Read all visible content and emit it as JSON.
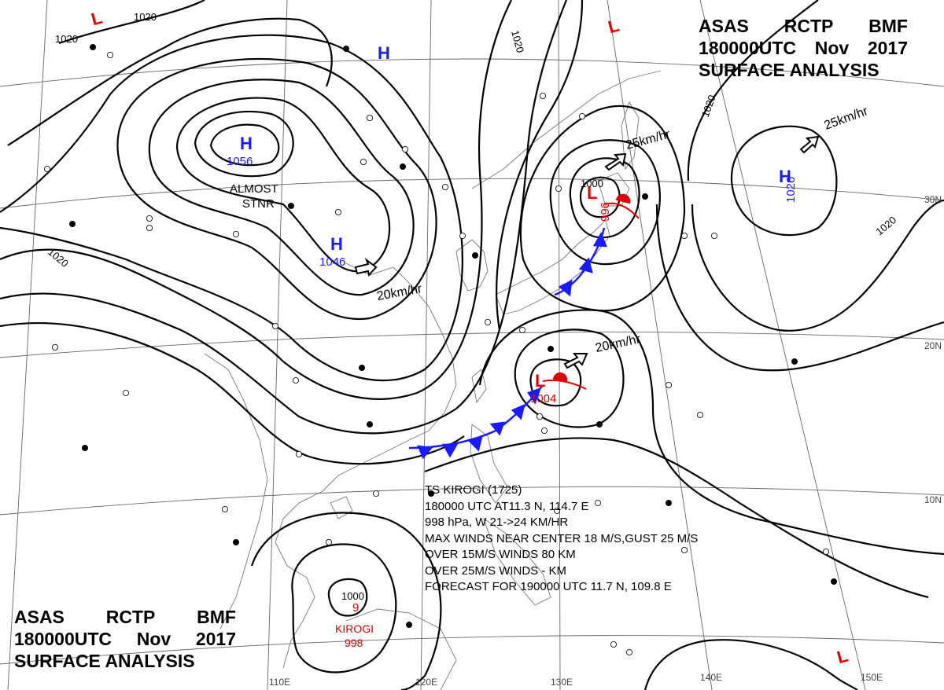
{
  "header": {
    "agency": [
      "ASAS",
      "RCTP",
      "BMF"
    ],
    "time_line": [
      "180000UTC",
      "Nov",
      "2017"
    ],
    "title": "SURFACE ANALYSIS"
  },
  "advisory": {
    "lines": [
      "TS  KIROGI  (1725)",
      "180000 UTC  AT11.3 N, 114.7 E",
      "998 hPa, W  21->24 KM/HR",
      "MAX WINDS NEAR CENTER 18 M/S,GUST 25 M/S",
      "OVER 15M/S WINDS  80 KM",
      "OVER 25M/S WINDS  - KM",
      "FORECAST FOR 190000 UTC 11.7 N, 109.8 E"
    ]
  },
  "pressure_centers": [
    {
      "type": "H",
      "value": "1056",
      "note": "ALMOST STNR"
    },
    {
      "type": "H",
      "value": "1046",
      "motion": "20km/hr"
    },
    {
      "type": "H",
      "value": "1026",
      "motion": "25km/hr"
    },
    {
      "type": "H",
      "value": ""
    },
    {
      "type": "L",
      "value": "996",
      "motion": "25km/hr"
    },
    {
      "type": "L",
      "value": "1004",
      "motion": "20km/hr"
    },
    {
      "type": "L",
      "value": ""
    },
    {
      "type": "L",
      "value": ""
    },
    {
      "type": "L",
      "value": ""
    }
  ],
  "storm": {
    "name": "KIROGI",
    "pressure": "998",
    "symbol": "9",
    "isobar": "1000"
  },
  "isobar_labels": [
    "1020",
    "1020",
    "1020",
    "1020",
    "1020",
    "1000"
  ],
  "lat_labels": [
    "30N",
    "20N",
    "10N"
  ],
  "lon_labels": [
    "110E",
    "120E",
    "130E",
    "140E",
    "150E"
  ],
  "text_labels": {
    "almost": "ALMOST",
    "stnr": "STNR",
    "motion_1046": "20km/hr",
    "motion_996": "25km/hr",
    "motion_1026": "25km/hr",
    "motion_1004": "20km/hr"
  },
  "colors": {
    "high": "#1a1aff",
    "low": "#e00000",
    "front": "#1a1aff",
    "isobar": "#000000",
    "grid": "#555555",
    "coast": "#777777"
  }
}
